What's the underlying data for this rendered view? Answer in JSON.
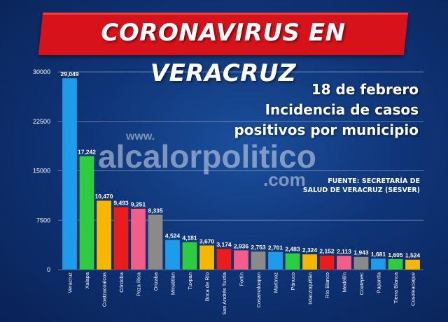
{
  "header": {
    "title": "CORONAVIRUS EN VERACRUZ"
  },
  "info": {
    "date": "18 de febrero",
    "subtitle_line1": "Incidencia de casos",
    "subtitle_line2": "positivos por municipio"
  },
  "source": {
    "line1": "FUENTE: SECRETARÍA DE",
    "line2": "SALUD DE VERACRUZ (SESVER)"
  },
  "watermark": {
    "prefix": "www.",
    "name": "alcalorpolitico",
    "suffix": ".com"
  },
  "chart_data": {
    "type": "bar",
    "categories": [
      "Veracruz",
      "Xalapa",
      "Coatzacoalcos",
      "Córdoba",
      "Poza Rica",
      "Orizaba",
      "Minatitlán",
      "Tuxpan",
      "Boca de Río",
      "San Andrés Tuxtla",
      "Fortín",
      "Cosamaloapan",
      "Martínez",
      "Pánuco",
      "Ixtaczoquitlán",
      "Río Blanco",
      "Medellín",
      "Coatepec",
      "Papantla",
      "Tierra Blanca",
      "Cosoleacaque"
    ],
    "values": [
      29049,
      17242,
      10470,
      9493,
      9251,
      8335,
      4524,
      4181,
      3670,
      3174,
      2936,
      2753,
      2701,
      2483,
      2324,
      2152,
      2113,
      1943,
      1681,
      1605,
      1524
    ],
    "value_labels": [
      "29,049",
      "17,242",
      "10,470",
      "9,493",
      "9,251",
      "8,335",
      "4,524",
      "4,181",
      "3,670",
      "3,174",
      "2,936",
      "2,753",
      "2,701",
      "2,483",
      "2,324",
      "2,152",
      "2,113",
      "1,943",
      "1,681",
      "1,605",
      "1,524"
    ],
    "colors": [
      "#1e9bea",
      "#2ecc40",
      "#f5b800",
      "#ea1c1c",
      "#f25d8a",
      "#8a8a8a",
      "#1e9bea",
      "#2ecc40",
      "#f5b800",
      "#ea1c1c",
      "#f25d8a",
      "#8a8a8a",
      "#1e9bea",
      "#2ecc40",
      "#f5b800",
      "#ea1c1c",
      "#f25d8a",
      "#8a8a8a",
      "#1e9bea",
      "#2ecc40",
      "#f5b800"
    ],
    "yticks": [
      0,
      7500,
      15000,
      22500,
      30000
    ],
    "ylim": [
      0,
      30000
    ],
    "grid": true
  }
}
